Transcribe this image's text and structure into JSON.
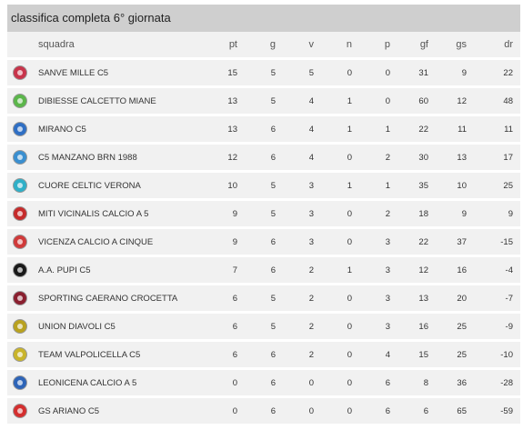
{
  "title": "classifica completa 6° giornata",
  "columns": {
    "squadra": "squadra",
    "pt": "pt",
    "g": "g",
    "v": "v",
    "n": "n",
    "p": "p",
    "gf": "gf",
    "gs": "gs",
    "dr": "dr"
  },
  "rows": [
    {
      "team": "SANVE MILLE C5",
      "pt": "15",
      "g": "5",
      "v": "5",
      "n": "0",
      "p": "0",
      "gf": "31",
      "gs": "9",
      "dr": "22",
      "logo_icon": "sanve-mille-logo-icon",
      "logo_color": "#c8344b"
    },
    {
      "team": "DIBIESSE CALCETTO MIANE",
      "pt": "13",
      "g": "5",
      "v": "4",
      "n": "1",
      "p": "0",
      "gf": "60",
      "gs": "12",
      "dr": "48",
      "logo_icon": "dibiesse-logo-icon",
      "logo_color": "#5bb64a"
    },
    {
      "team": "MIRANO C5",
      "pt": "13",
      "g": "6",
      "v": "4",
      "n": "1",
      "p": "1",
      "gf": "22",
      "gs": "11",
      "dr": "11",
      "logo_icon": "mirano-logo-icon",
      "logo_color": "#2f6fc4"
    },
    {
      "team": "C5 MANZANO BRN 1988",
      "pt": "12",
      "g": "6",
      "v": "4",
      "n": "0",
      "p": "2",
      "gf": "30",
      "gs": "13",
      "dr": "17",
      "logo_icon": "manzano-logo-icon",
      "logo_color": "#3a8fd0"
    },
    {
      "team": "CUORE CELTIC VERONA",
      "pt": "10",
      "g": "5",
      "v": "3",
      "n": "1",
      "p": "1",
      "gf": "35",
      "gs": "10",
      "dr": "25",
      "logo_icon": "cuore-celtic-logo-icon",
      "logo_color": "#2fb0c8"
    },
    {
      "team": "MITI VICINALIS CALCIO A 5",
      "pt": "9",
      "g": "5",
      "v": "3",
      "n": "0",
      "p": "2",
      "gf": "18",
      "gs": "9",
      "dr": "9",
      "logo_icon": "miti-vicinalis-logo-icon",
      "logo_color": "#c62b2b"
    },
    {
      "team": "VICENZA CALCIO A CINQUE",
      "pt": "9",
      "g": "6",
      "v": "3",
      "n": "0",
      "p": "3",
      "gf": "22",
      "gs": "37",
      "dr": "-15",
      "logo_icon": "vicenza-logo-icon",
      "logo_color": "#d03a3a"
    },
    {
      "team": "A.A. PUPI C5",
      "pt": "7",
      "g": "6",
      "v": "2",
      "n": "1",
      "p": "3",
      "gf": "12",
      "gs": "16",
      "dr": "-4",
      "logo_icon": "pupi-logo-icon",
      "logo_color": "#1a1a1a"
    },
    {
      "team": "SPORTING CAERANO CROCETTA",
      "pt": "6",
      "g": "5",
      "v": "2",
      "n": "0",
      "p": "3",
      "gf": "13",
      "gs": "20",
      "dr": "-7",
      "logo_icon": "sporting-caerano-logo-icon",
      "logo_color": "#8a1f2f"
    },
    {
      "team": "UNION DIAVOLI C5",
      "pt": "6",
      "g": "5",
      "v": "2",
      "n": "0",
      "p": "3",
      "gf": "16",
      "gs": "25",
      "dr": "-9",
      "logo_icon": "union-diavoli-logo-icon",
      "logo_color": "#b9a21f"
    },
    {
      "team": "TEAM VALPOLICELLA C5",
      "pt": "6",
      "g": "6",
      "v": "2",
      "n": "0",
      "p": "4",
      "gf": "15",
      "gs": "25",
      "dr": "-10",
      "logo_icon": "valpolicella-logo-icon",
      "logo_color": "#c9b42a"
    },
    {
      "team": "LEONICENA CALCIO A 5",
      "pt": "0",
      "g": "6",
      "v": "0",
      "n": "0",
      "p": "6",
      "gf": "8",
      "gs": "36",
      "dr": "-28",
      "logo_icon": "leonicena-logo-icon",
      "logo_color": "#2d64b8"
    },
    {
      "team": "GS ARIANO C5",
      "pt": "0",
      "g": "6",
      "v": "0",
      "n": "0",
      "p": "6",
      "gf": "6",
      "gs": "65",
      "dr": "-59",
      "logo_icon": "ariano-logo-icon",
      "logo_color": "#d42f2f"
    }
  ]
}
